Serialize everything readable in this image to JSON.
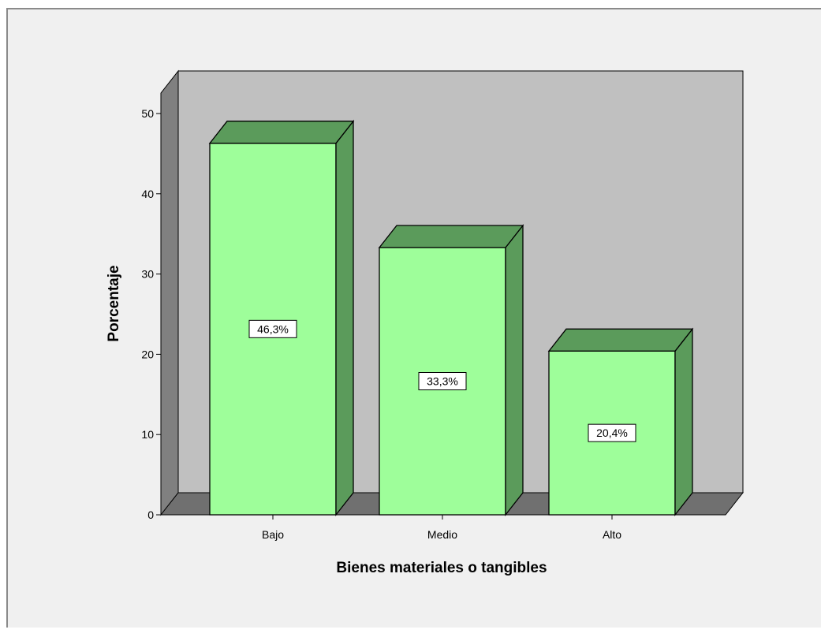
{
  "chart_data": {
    "type": "bar",
    "style": "3d",
    "categories": [
      "Bajo",
      "Medio",
      "Alto"
    ],
    "values": [
      46.3,
      33.3,
      20.4
    ],
    "data_labels": [
      "46,3%",
      "33,3%",
      "20,4%"
    ],
    "title": "",
    "xlabel": "Bienes materiales o tangibles",
    "ylabel": "Porcentaje",
    "ylim": [
      0,
      50
    ],
    "yticks": [
      "0",
      "10",
      "20",
      "30",
      "40",
      "50"
    ],
    "grid": false,
    "legend": "none",
    "colors": {
      "bar_front": "#9efe9a",
      "bar_side": "#5b9b5b",
      "bar_top": "#5b9b5b",
      "back_wall": "#c0c0c0",
      "side_wall": "#808080",
      "floor": "#707070",
      "outside": "#f0f0f0"
    }
  }
}
